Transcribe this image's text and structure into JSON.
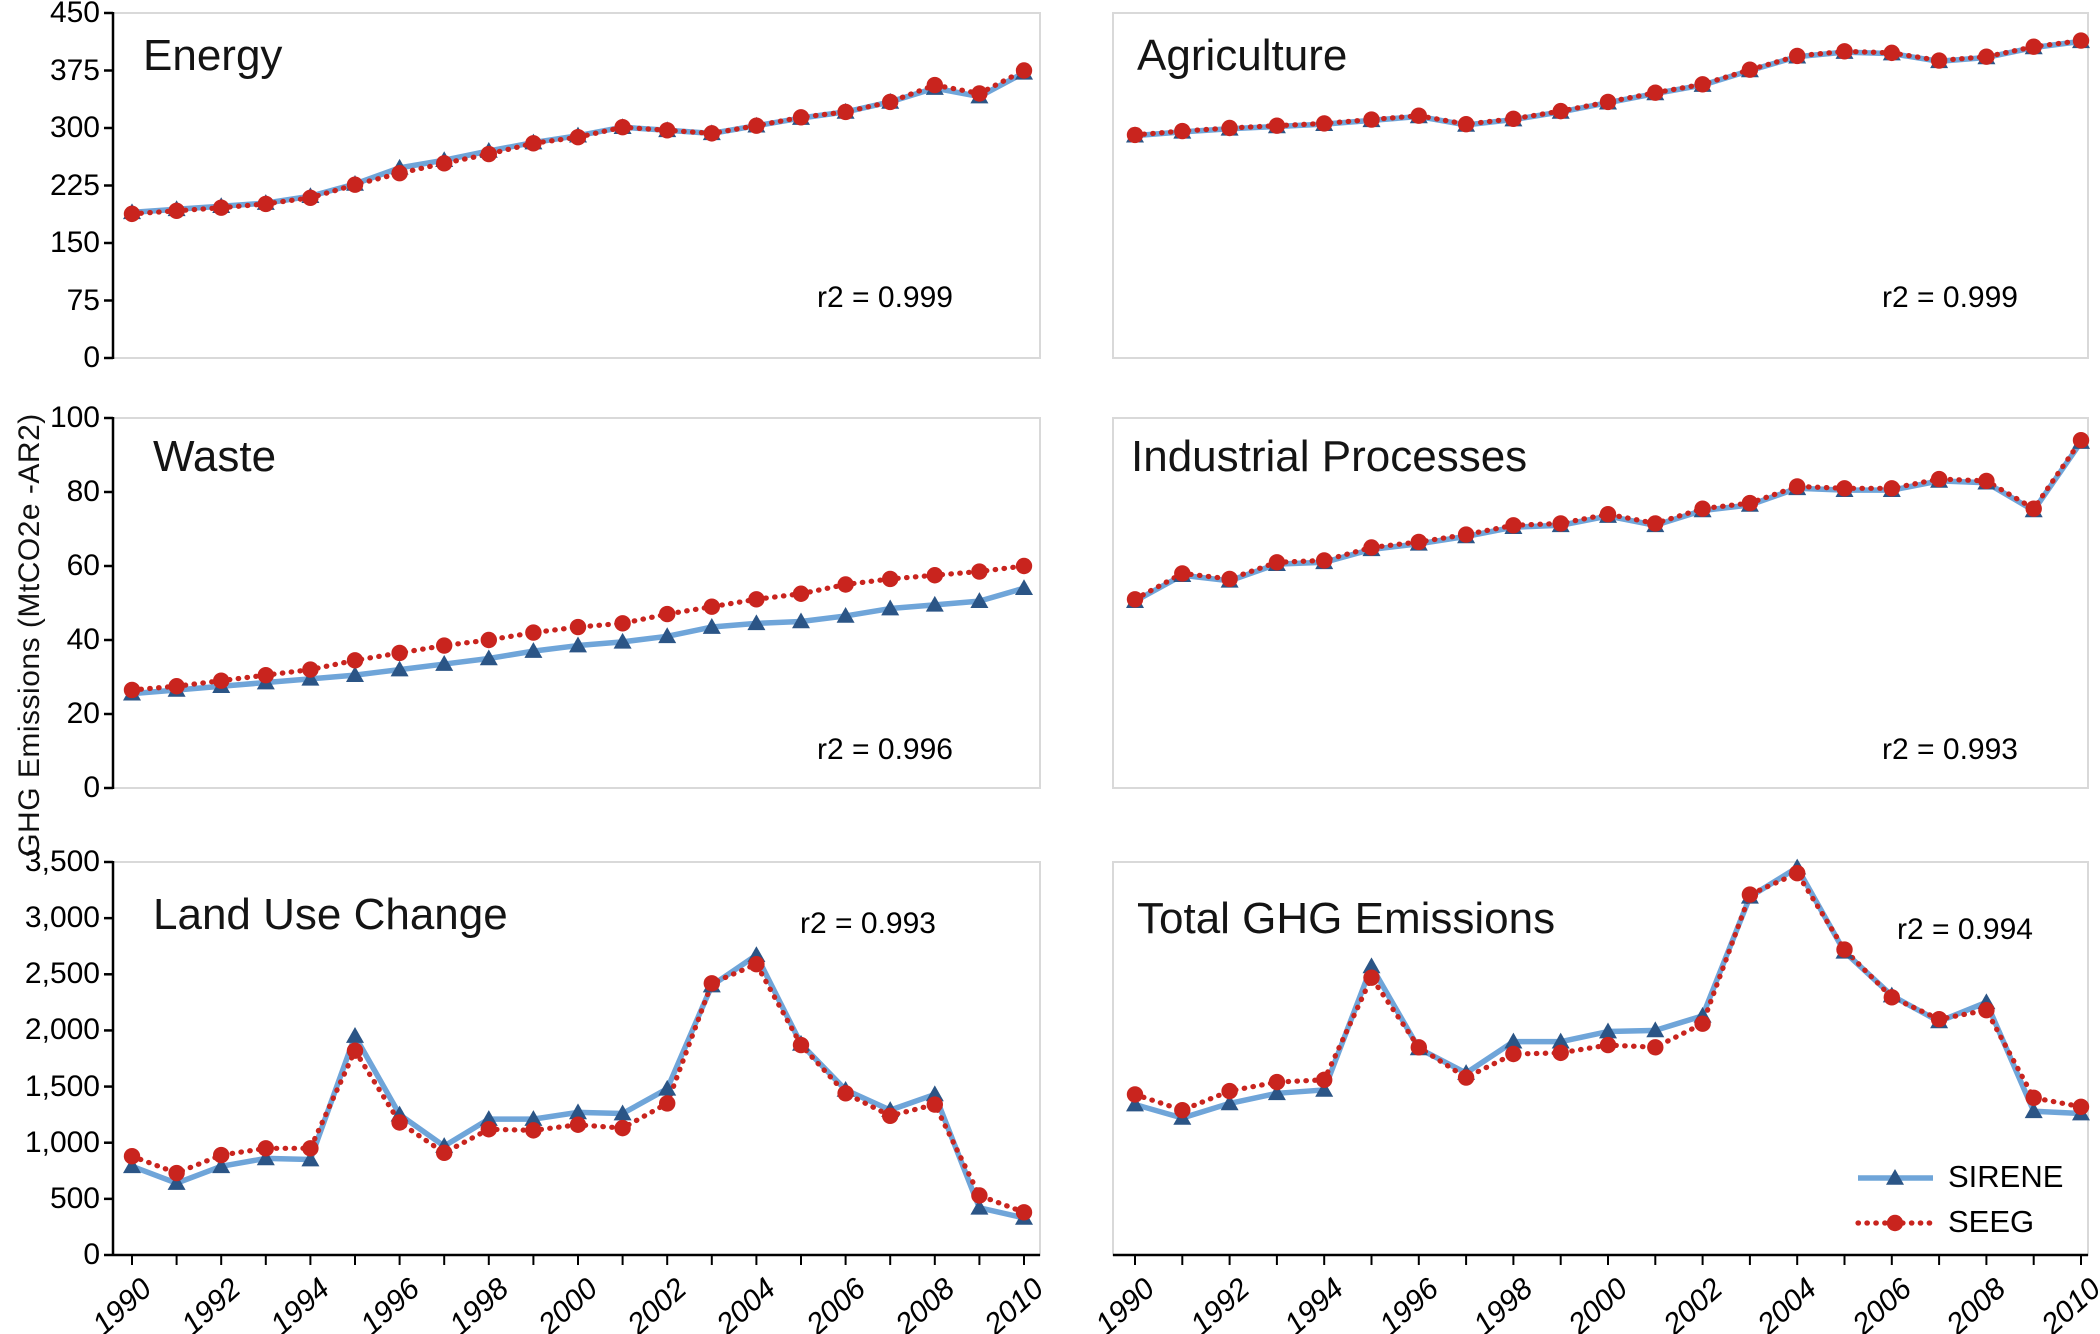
{
  "figure": {
    "ylabel": "GHG Emissions (MtCO2e -AR2)",
    "x_years": [
      1990,
      1991,
      1992,
      1993,
      1994,
      1995,
      1996,
      1997,
      1998,
      1999,
      2000,
      2001,
      2002,
      2003,
      2004,
      2005,
      2006,
      2007,
      2008,
      2009,
      2010
    ],
    "x_tick_labels": [
      "1990",
      "1992",
      "1994",
      "1996",
      "1998",
      "2000",
      "2002",
      "2004",
      "2006",
      "2008",
      "2010"
    ],
    "legend": [
      {
        "name": "SIRENE",
        "style": "solid-line-triangle-marker"
      },
      {
        "name": "SEEG",
        "style": "dotted-line-circle-marker"
      }
    ],
    "colors": {
      "sirene_line": "#6FA5D9",
      "sirene_marker": "#2B5586",
      "seeg": "#C9241E",
      "panel_border": "#D9D9D9",
      "axis": "#000000"
    }
  },
  "chart_data": [
    {
      "id": "energy",
      "type": "line",
      "title": "Energy",
      "r2_label": "r2 = 0.999",
      "ylim": [
        0,
        450
      ],
      "ytick_labels": [
        "450",
        "375",
        "300",
        "225",
        "150",
        "75",
        "0"
      ],
      "series": [
        {
          "name": "SIRENE",
          "values": [
            190,
            194,
            198,
            202,
            211,
            227,
            248,
            258,
            270,
            281,
            290,
            301,
            297,
            293,
            303,
            313,
            321,
            334,
            352,
            341,
            372
          ]
        },
        {
          "name": "SEEG",
          "values": [
            188,
            192,
            196,
            201,
            209,
            226,
            241,
            254,
            266,
            280,
            288,
            301,
            297,
            293,
            303,
            314,
            321,
            334,
            356,
            345,
            375
          ]
        }
      ]
    },
    {
      "id": "agriculture",
      "type": "line",
      "title": "Agriculture",
      "r2_label": "r2 = 0.999",
      "ylim": [
        0,
        450
      ],
      "ytick_labels": [],
      "series": [
        {
          "name": "SIRENE",
          "values": [
            290,
            295,
            299,
            302,
            305,
            310,
            315,
            304,
            311,
            321,
            333,
            345,
            356,
            375,
            393,
            399,
            397,
            387,
            392,
            405,
            413
          ]
        },
        {
          "name": "SEEG",
          "values": [
            291,
            296,
            300,
            303,
            306,
            311,
            316,
            305,
            312,
            322,
            334,
            346,
            357,
            376,
            394,
            400,
            398,
            388,
            393,
            406,
            414
          ]
        }
      ]
    },
    {
      "id": "waste",
      "type": "line",
      "title": "Waste",
      "r2_label": "r2 = 0.996",
      "ylim": [
        0,
        100
      ],
      "ytick_labels": [
        "100",
        "80",
        "60",
        "40",
        "20",
        "0"
      ],
      "series": [
        {
          "name": "SIRENE",
          "values": [
            25.5,
            26.5,
            27.5,
            28.5,
            29.5,
            30.5,
            32,
            33.5,
            35,
            37,
            38.5,
            39.5,
            41,
            43.5,
            44.5,
            45,
            46.5,
            48.5,
            49.5,
            50.5,
            54
          ]
        },
        {
          "name": "SEEG",
          "values": [
            26.5,
            27.5,
            29,
            30.5,
            32,
            34.5,
            36.5,
            38.5,
            40,
            42,
            43.5,
            44.5,
            47,
            49,
            51,
            52.5,
            55,
            56.5,
            57.5,
            58.5,
            60
          ]
        }
      ]
    },
    {
      "id": "industrial",
      "type": "line",
      "title": "Industrial Processes",
      "r2_label": "r2 = 0.993",
      "ylim": [
        0,
        100
      ],
      "ytick_labels": [],
      "series": [
        {
          "name": "SIRENE",
          "values": [
            50.5,
            57.5,
            56,
            60.5,
            61,
            64.5,
            66,
            68,
            70.5,
            71,
            73.5,
            71,
            75,
            76.5,
            81,
            80.5,
            80.5,
            83,
            82.5,
            75,
            93.5
          ]
        },
        {
          "name": "SEEG",
          "values": [
            51,
            58,
            56.5,
            61,
            61.5,
            65,
            66.5,
            68.5,
            71,
            71.5,
            74,
            71.5,
            75.5,
            77,
            81.5,
            81,
            81,
            83.5,
            83,
            75.5,
            94
          ]
        }
      ]
    },
    {
      "id": "land-use-change",
      "type": "line",
      "title": "Land Use Change",
      "r2_label": "r2 = 0.993",
      "ylim": [
        0,
        3500
      ],
      "ytick_labels": [
        "3,500",
        "3,000",
        "2,500",
        "2,000",
        "1,500",
        "1,000",
        "500",
        "0"
      ],
      "series": [
        {
          "name": "SIRENE",
          "values": [
            790,
            640,
            790,
            860,
            850,
            1950,
            1250,
            970,
            1210,
            1210,
            1270,
            1260,
            1480,
            2400,
            2670,
            1880,
            1470,
            1290,
            1430,
            420,
            330
          ]
        },
        {
          "name": "SEEG",
          "values": [
            880,
            730,
            890,
            950,
            950,
            1820,
            1180,
            910,
            1120,
            1110,
            1160,
            1130,
            1350,
            2420,
            2590,
            1870,
            1440,
            1240,
            1340,
            530,
            380
          ]
        }
      ]
    },
    {
      "id": "total",
      "type": "line",
      "title": "Total GHG Emissions",
      "r2_label": "r2 = 0.994",
      "ylim": [
        0,
        3500
      ],
      "ytick_labels": [],
      "series": [
        {
          "name": "SIRENE",
          "values": [
            1340,
            1220,
            1350,
            1440,
            1470,
            2570,
            1840,
            1620,
            1900,
            1900,
            1990,
            2000,
            2130,
            3190,
            3450,
            2700,
            2310,
            2080,
            2250,
            1280,
            1260
          ]
        },
        {
          "name": "SEEG",
          "values": [
            1430,
            1290,
            1460,
            1540,
            1560,
            2470,
            1850,
            1580,
            1790,
            1800,
            1870,
            1850,
            2060,
            3210,
            3400,
            2720,
            2295,
            2100,
            2180,
            1400,
            1320
          ]
        }
      ]
    }
  ]
}
